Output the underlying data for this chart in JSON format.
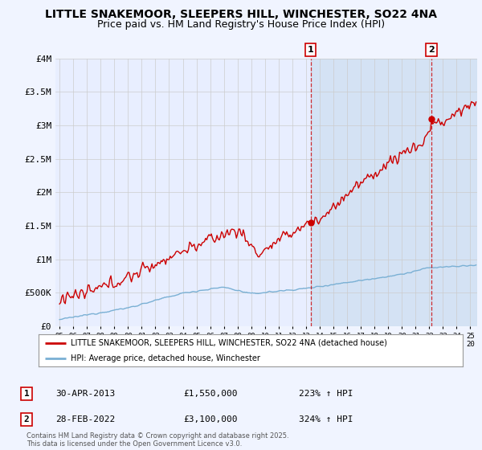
{
  "title": "LITTLE SNAKEMOOR, SLEEPERS HILL, WINCHESTER, SO22 4NA",
  "subtitle": "Price paid vs. HM Land Registry's House Price Index (HPI)",
  "title_fontsize": 10,
  "subtitle_fontsize": 9,
  "background_color": "#f0f4ff",
  "plot_bg_color_left": "#e8eeff",
  "plot_bg_color_right": "#dce8f8",
  "ylabel_ticks": [
    "£0",
    "£500K",
    "£1M",
    "£1.5M",
    "£2M",
    "£2.5M",
    "£3M",
    "£3.5M",
    "£4M"
  ],
  "ylim": [
    0,
    4000000
  ],
  "ytick_vals": [
    0,
    500000,
    1000000,
    1500000,
    2000000,
    2500000,
    3000000,
    3500000,
    4000000
  ],
  "xlim_start": 1994.7,
  "xlim_end": 2025.5,
  "ann1_x": 2013.33,
  "ann1_y": 1550000,
  "ann2_x": 2022.16,
  "ann2_y": 3100000,
  "legend_line1": "LITTLE SNAKEMOOR, SLEEPERS HILL, WINCHESTER, SO22 4NA (detached house)",
  "legend_line2": "HPI: Average price, detached house, Winchester",
  "footer": "Contains HM Land Registry data © Crown copyright and database right 2025.\nThis data is licensed under the Open Government Licence v3.0.",
  "line_color_red": "#cc0000",
  "line_color_blue": "#7ab0d4",
  "vline_color": "#cc0000",
  "grid_color": "#cccccc",
  "shade_color": "#ccddf0"
}
